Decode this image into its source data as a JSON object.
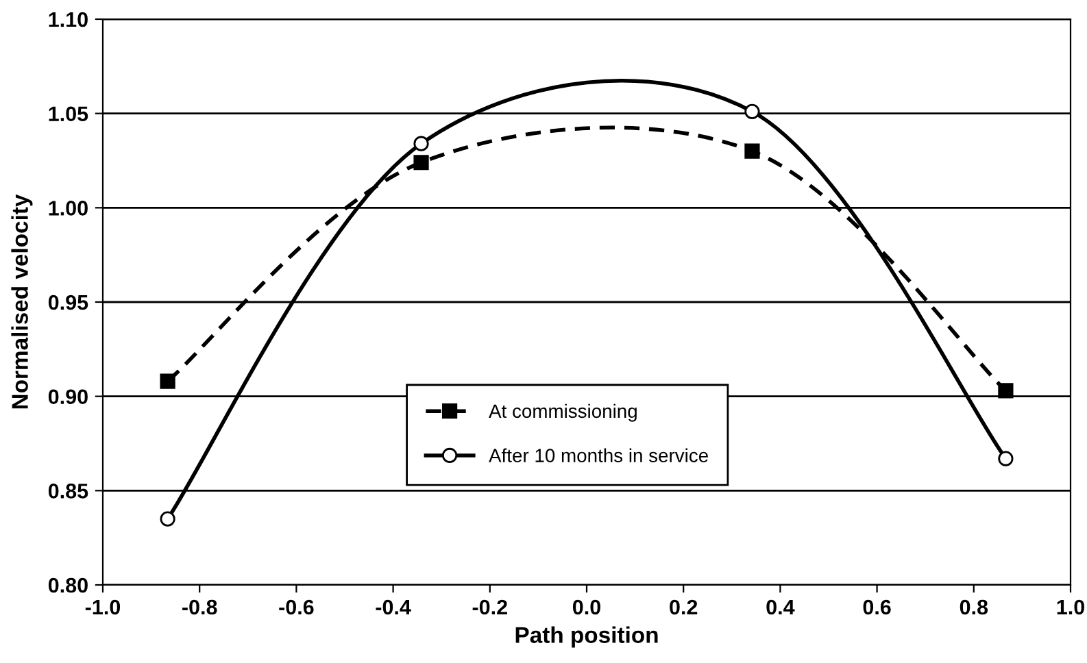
{
  "chart_data": {
    "type": "line",
    "xlabel": "Path position",
    "ylabel": "Normalised velocity",
    "series": [
      {
        "name": "At commissioning",
        "color": "#000000",
        "x": [
          -0.866,
          -0.342,
          0.342,
          0.866
        ],
        "values": [
          0.908,
          1.024,
          1.03,
          0.903
        ],
        "marker": "square",
        "line_style": "dashed"
      },
      {
        "name": "After 10 months in service",
        "color": "#000000",
        "x": [
          -0.866,
          -0.342,
          0.342,
          0.866
        ],
        "values": [
          0.835,
          1.034,
          1.051,
          0.867
        ],
        "marker": "circle",
        "line_style": "solid"
      }
    ],
    "xlim": [
      -1.0,
      1.0
    ],
    "xticks": [
      {
        "value": -1.0,
        "label": "-1.0"
      },
      {
        "value": -0.8,
        "label": "-0.8"
      },
      {
        "value": -0.6,
        "label": "-0.6"
      },
      {
        "value": -0.4,
        "label": "-0.4"
      },
      {
        "value": -0.2,
        "label": "-0.2"
      },
      {
        "value": 0.0,
        "label": "0.0"
      },
      {
        "value": 0.2,
        "label": "0.2"
      },
      {
        "value": 0.4,
        "label": "0.4"
      },
      {
        "value": 0.6,
        "label": "0.6"
      },
      {
        "value": 0.8,
        "label": "0.8"
      },
      {
        "value": 1.0,
        "label": "1.0"
      }
    ],
    "ylim": [
      0.8,
      1.1
    ],
    "yticks": [
      {
        "value": 0.8,
        "label": "0.80"
      },
      {
        "value": 0.85,
        "label": "0.85"
      },
      {
        "value": 0.9,
        "label": "0.90"
      },
      {
        "value": 0.95,
        "label": "0.95"
      },
      {
        "value": 1.0,
        "label": "1.00"
      },
      {
        "value": 1.05,
        "label": "1.05"
      },
      {
        "value": 1.1,
        "label": "1.10"
      }
    ],
    "grid": "y",
    "legend": "bottom"
  }
}
